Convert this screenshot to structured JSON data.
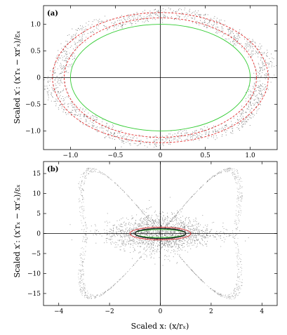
{
  "figure": {
    "ylabel": "Scaled x′:   (x′rₓ − xr′ₓ)/εₓ",
    "xlabel": "Scaled x:   (x/rₓ)"
  },
  "chart_data": [
    {
      "type": "scatter",
      "panel_label": "(a)",
      "xlim": [
        -1.3,
        1.3
      ],
      "ylim": [
        -1.35,
        1.35
      ],
      "x_ticks": [
        -1.0,
        -0.5,
        0,
        0.5,
        1.0
      ],
      "x_tick_labels": [
        "−1.0",
        "−0.5",
        "0",
        "0.5",
        "1.0"
      ],
      "y_ticks": [
        -1.0,
        -0.5,
        0,
        0.5,
        1.0
      ],
      "y_tick_labels": [
        "−1.0",
        "−0.5",
        "0",
        "0.5",
        "1.0"
      ],
      "grid": false,
      "zero_lines": true,
      "colors": {
        "inner_ellipse": "#33cc33",
        "boundary": "#e23030",
        "particles": "#222222"
      },
      "series": [
        {
          "kind": "ellipse",
          "role": "inner_ellipse",
          "rx": 1.0,
          "ry": 1.0
        },
        {
          "kind": "ellipse",
          "role": "boundary",
          "rx": 1.2,
          "ry": 1.22,
          "dashed": true
        },
        {
          "kind": "ellipse",
          "role": "boundary",
          "rx": 1.07,
          "ry": 1.12,
          "dashed": true
        },
        {
          "kind": "particle_band",
          "role": "particles",
          "r_min": 1.05,
          "r_max": 1.25,
          "count": 1500
        }
      ]
    },
    {
      "type": "scatter",
      "panel_label": "(b)",
      "xlim": [
        -4.6,
        4.6
      ],
      "ylim": [
        -18,
        18
      ],
      "x_ticks": [
        -4,
        -2,
        0,
        2,
        4
      ],
      "x_tick_labels": [
        "−4",
        "−2",
        "0",
        "2",
        "4"
      ],
      "y_ticks": [
        -15,
        -10,
        -5,
        0,
        5,
        10,
        15
      ],
      "y_tick_labels": [
        "−15",
        "−10",
        "−5",
        "0",
        "5",
        "10",
        "15"
      ],
      "grid": false,
      "zero_lines": true,
      "colors": {
        "core_ellipse": "#33cc33",
        "boundary": "#e23030",
        "core_dark": "#1a1a1a",
        "particles": "#333333",
        "halo": "#555555"
      },
      "series": [
        {
          "kind": "ellipse",
          "role": "core_ellipse",
          "rx": 1.0,
          "ry": 1.0
        },
        {
          "kind": "ellipse",
          "role": "boundary",
          "rx": 1.2,
          "ry": 1.6
        },
        {
          "kind": "ellipse",
          "role": "core_dark",
          "rx": 1.0,
          "ry": 1.25
        },
        {
          "kind": "particle_cloud",
          "role": "particles",
          "sigma_x": 1.05,
          "sigma_y": 2.6,
          "count": 1700
        },
        {
          "kind": "halo_lobes",
          "role": "halo",
          "max_x": 4.3,
          "max_y": 16.5,
          "count": 1200
        }
      ]
    }
  ]
}
